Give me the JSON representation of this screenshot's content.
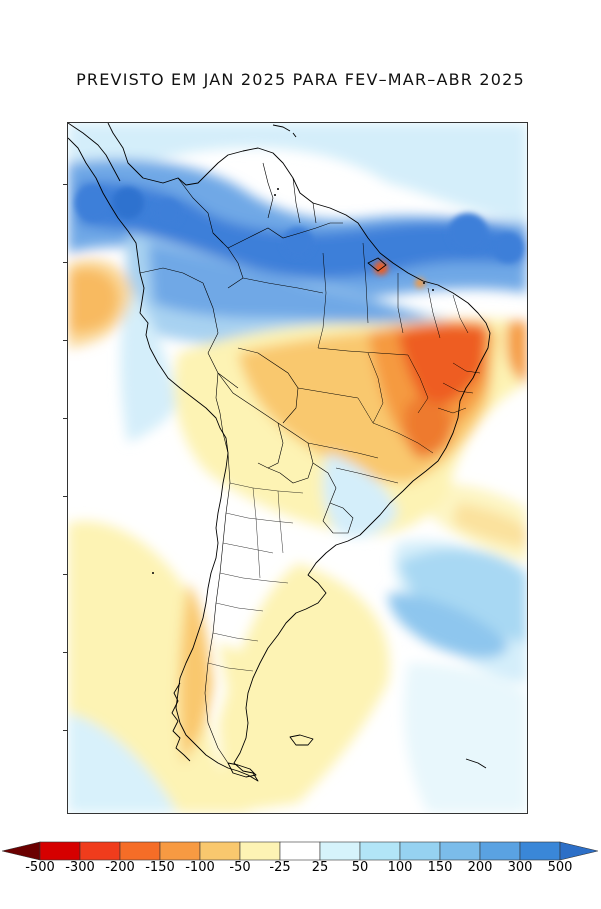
{
  "title": "PREVISTO EM JAN 2025 PARA FEV–MAR–ABR 2025",
  "legend": {
    "labels": [
      "-500",
      "-300",
      "-200",
      "-150",
      "-100",
      "-50",
      "-25",
      "25",
      "50",
      "100",
      "150",
      "200",
      "300",
      "500"
    ],
    "colors": [
      "#6b0000",
      "#d60000",
      "#f03c1c",
      "#f56d27",
      "#f79a42",
      "#f9c86e",
      "#fdf3b4",
      "#ffffff",
      "#d6f3fb",
      "#b2e5f7",
      "#96d2f1",
      "#7bbcea",
      "#5aa2e2",
      "#3a87d8",
      "#2d6fc7"
    ]
  },
  "map": {
    "region": "South America",
    "colors": {
      "strong_blue": "#3d7fd9",
      "mid_blue": "#6fa8e6",
      "light_blue": "#a8d2f1",
      "pale_blue": "#d4eefa",
      "pale_yellow": "#fdf3b4",
      "light_orange": "#f9c86e",
      "orange": "#f59a40",
      "red_orange": "#ee5d22",
      "coast": "#000000"
    }
  }
}
